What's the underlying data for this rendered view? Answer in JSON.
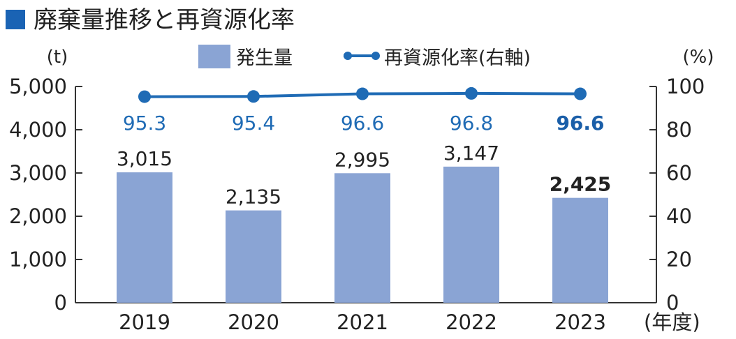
{
  "title": "廃棄量推移と再資源化率",
  "colors": {
    "bar": "#8aa4d4",
    "line": "#1f6bb5",
    "title_marker": "#1a63b4",
    "axis": "#333333"
  },
  "chart_data": {
    "type": "bar",
    "title": "廃棄量推移と再資源化率",
    "categories": [
      "2019",
      "2020",
      "2021",
      "2022",
      "2023"
    ],
    "x_unit": "(年度)",
    "y_left_label": "(t)",
    "y_right_label": "(%)",
    "y_left_lim": [
      0,
      5000
    ],
    "y_right_lim": [
      0,
      100
    ],
    "y_left_ticks": [
      "0",
      "1,000",
      "2,000",
      "3,000",
      "4,000",
      "5,000"
    ],
    "y_right_ticks": [
      "0",
      "20",
      "40",
      "60",
      "80",
      "100"
    ],
    "legend_position": "top-center",
    "series": [
      {
        "name": "発生量",
        "kind": "bar",
        "axis": "left",
        "values": [
          3015,
          2135,
          2995,
          3147,
          2425
        ],
        "labels": [
          "3,015",
          "2,135",
          "2,995",
          "3,147",
          "2,425"
        ]
      },
      {
        "name": "再資源化率(右軸)",
        "kind": "line",
        "axis": "right",
        "values": [
          95.3,
          95.4,
          96.6,
          96.8,
          96.6
        ],
        "labels": [
          "95.3",
          "95.4",
          "96.6",
          "96.8",
          "96.6"
        ]
      }
    ],
    "highlight_index": 4
  }
}
